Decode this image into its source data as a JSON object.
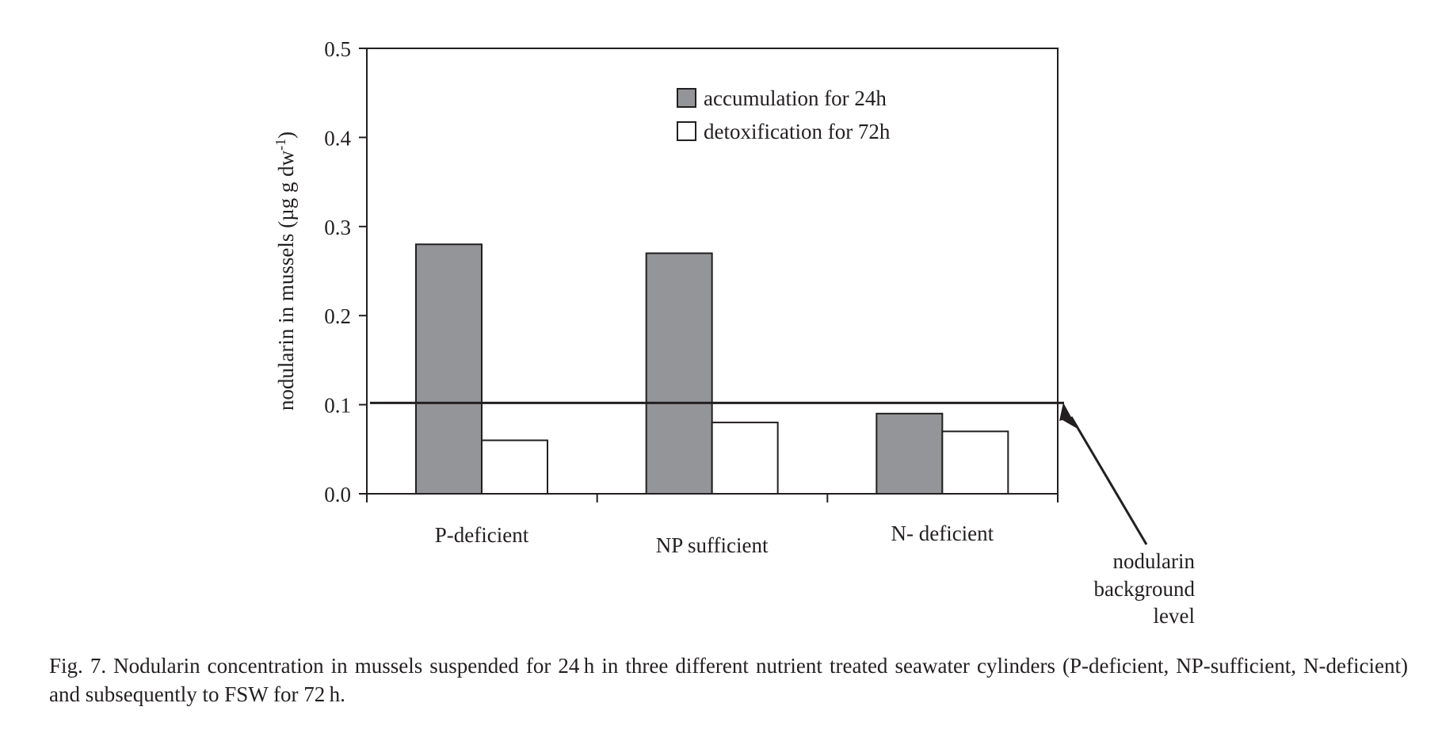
{
  "caption": "Fig. 7. Nodularin concentration in mussels suspended for 24 h in three different nutrient treated seawater cylinders (P-deficient, NP-sufficient, N-deficient) and subsequently to FSW for 72 h.",
  "chart_data": {
    "type": "bar",
    "title": "",
    "xlabel": "",
    "ylabel": "nodularin in mussels (µg g dw",
    "ylabel_superscript": "-1",
    "ylabel_close": ")",
    "ylim": [
      0,
      0.5
    ],
    "yticks": [
      "0.0",
      "0.1",
      "0.2",
      "0.3",
      "0.4",
      "0.5"
    ],
    "categories": [
      "P-deficient",
      "NP sufficient",
      "N- deficient"
    ],
    "series": [
      {
        "name": "accumulation for 24h",
        "values": [
          0.28,
          0.27,
          0.09
        ],
        "color": "#939598"
      },
      {
        "name": "detoxification for 72h",
        "values": [
          0.06,
          0.08,
          0.07
        ],
        "color": "#ffffff"
      }
    ],
    "reference_line": {
      "value": 0.102,
      "label": [
        "nodularin",
        "background",
        "level"
      ]
    },
    "legend_position": "top-center",
    "grid": false
  }
}
